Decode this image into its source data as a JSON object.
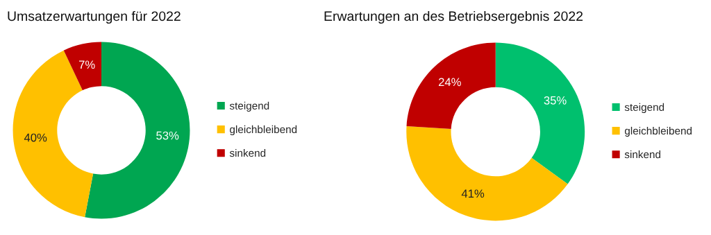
{
  "chart_data": [
    {
      "type": "donut",
      "title": "Umsatzerwartungen für 2022",
      "categories": [
        "steigend",
        "gleichbleibend",
        "sinkend"
      ],
      "values": [
        53,
        40,
        7
      ],
      "value_labels": [
        "53%",
        "40%",
        "7%"
      ],
      "colors": [
        "#00a651",
        "#ffc000",
        "#c00000"
      ],
      "legend": "right"
    },
    {
      "type": "donut",
      "title": "Erwartungen an des Betriebsergebnis 2022",
      "categories": [
        "steigend",
        "gleichbleibend",
        "sinkend"
      ],
      "values": [
        35,
        41,
        24
      ],
      "value_labels": [
        "35%",
        "41%",
        "24%"
      ],
      "colors": [
        "#00c06e",
        "#ffc000",
        "#c00000"
      ],
      "legend": "right"
    }
  ]
}
